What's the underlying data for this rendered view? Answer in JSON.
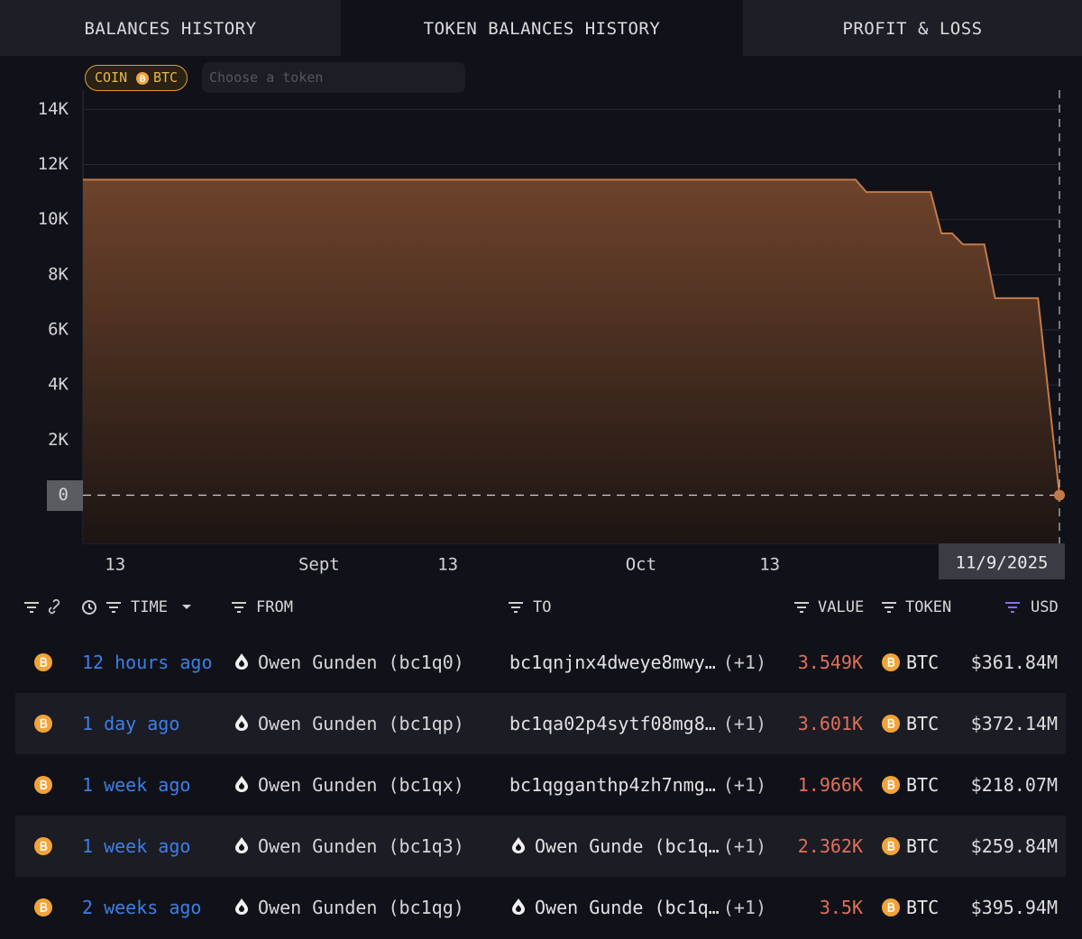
{
  "tabs": [
    "BALANCES HISTORY",
    "TOKEN BALANCES HISTORY",
    "PROFIT & LOSS"
  ],
  "filter": {
    "chip_label": "COIN",
    "chip_token": "BTC",
    "token_input_placeholder": "Choose a token"
  },
  "chart_data": {
    "type": "area",
    "x": [
      "2025-08-10",
      "2025-10-21",
      "2025-10-22",
      "2025-10-28",
      "2025-10-29",
      "2025-10-30",
      "2025-10-31",
      "2025-11-02",
      "2025-11-03",
      "2025-11-07",
      "2025-11-09"
    ],
    "values": [
      11450,
      11450,
      11000,
      11000,
      9500,
      9500,
      9100,
      9100,
      7150,
      7150,
      0
    ],
    "color": "#c27a4a",
    "xlim": [
      "2025-08-10",
      "2025-11-09"
    ],
    "xticks": [
      {
        "value": "2025-08-13",
        "label": "13"
      },
      {
        "value": "2025-09-01",
        "label": "Sept"
      },
      {
        "value": "2025-09-13",
        "label": "13"
      },
      {
        "value": "2025-10-01",
        "label": "Oct"
      },
      {
        "value": "2025-10-13",
        "label": "13"
      }
    ],
    "ylim": [
      -1750,
      14700
    ],
    "yticks": [
      0,
      {
        "value": 2000,
        "label": "2K"
      },
      {
        "value": 4000,
        "label": "4K"
      },
      {
        "value": 6000,
        "label": "6K"
      },
      {
        "value": 8000,
        "label": "8K"
      },
      {
        "value": 10000,
        "label": "10K"
      },
      {
        "value": 12000,
        "label": "12K"
      },
      {
        "value": 14000,
        "label": "14K"
      }
    ],
    "grid": true,
    "crosshair_label": "11/9/2025"
  },
  "table": {
    "columns": [
      "TIME",
      "FROM",
      "TO",
      "VALUE",
      "TOKEN",
      "USD"
    ],
    "rows": [
      {
        "time": "12 hours ago",
        "from": "Owen Gunden (bc1q0)",
        "to": "bc1qnjnx4dweye8mwy…",
        "to_extra": "(+1)",
        "value": "3.549K",
        "token": "BTC",
        "usd": "$361.84M"
      },
      {
        "time": "1 day ago",
        "from": "Owen Gunden (bc1qp)",
        "to": "bc1qa02p4sytf08mg8…",
        "to_extra": "(+1)",
        "value": "3.601K",
        "token": "BTC",
        "usd": "$372.14M"
      },
      {
        "time": "1 week ago",
        "from": "Owen Gunden (bc1qx)",
        "to": "bc1qgganthp4zh7nmg…",
        "to_extra": "(+1)",
        "value": "1.966K",
        "token": "BTC",
        "usd": "$218.07M"
      },
      {
        "time": "1 week ago",
        "from": "Owen Gunden (bc1q3)",
        "to": "Owen Gunde (bc1q…",
        "to_extra": "(+1)",
        "value": "2.362K",
        "token": "BTC",
        "usd": "$259.84M"
      },
      {
        "time": "2 weeks ago",
        "from": "Owen Gunden (bc1qg)",
        "to": "Owen Gunde (bc1q…",
        "to_extra": "(+1)",
        "value": "3.5K",
        "token": "BTC",
        "usd": "$395.94M"
      }
    ]
  }
}
